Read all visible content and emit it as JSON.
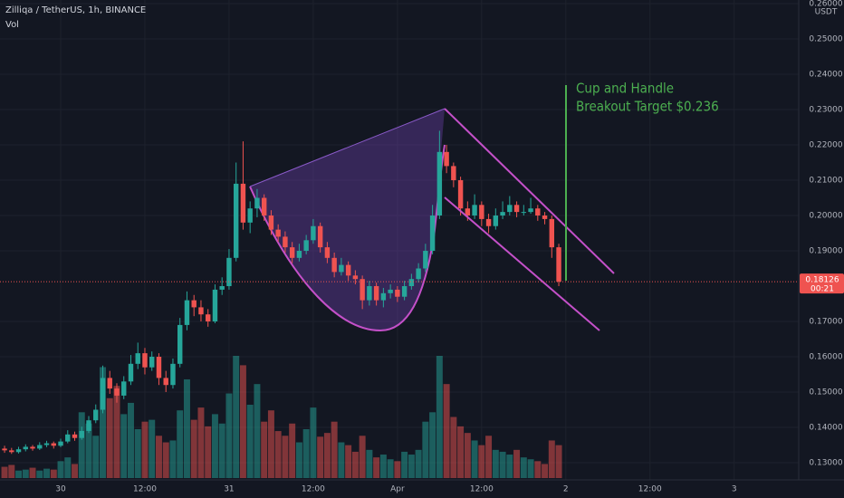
{
  "chart_data": {
    "type": "candlestick",
    "title": "Zilliqa / TetherUS, 1h, BINANCE",
    "volume_label": "Vol",
    "currency": "USDT",
    "annotation": [
      "Cup and Handle",
      "Breakout Target $0.236"
    ],
    "last_price": 0.18126,
    "countdown": "00:21",
    "colors": {
      "up": "#26a69a",
      "down": "#ef5350"
    },
    "grid": true,
    "xlim": [
      -8.65,
      105.2
    ],
    "xticks": [
      {
        "value": 0,
        "label": "30"
      },
      {
        "value": 12,
        "label": "12:00"
      },
      {
        "value": 24,
        "label": "31"
      },
      {
        "value": 36,
        "label": "12:00"
      },
      {
        "value": 48,
        "label": "Apr"
      },
      {
        "value": 60,
        "label": "12:00"
      },
      {
        "value": 72,
        "label": "2"
      },
      {
        "value": 84,
        "label": "12:00"
      },
      {
        "value": 96,
        "label": "3"
      }
    ],
    "ylim": [
      0.12513,
      0.26103
    ],
    "yticks": [
      {
        "value": 0.13,
        "label": "0.13000"
      },
      {
        "value": 0.14,
        "label": "0.14000"
      },
      {
        "value": 0.15,
        "label": "0.15000"
      },
      {
        "value": 0.16,
        "label": "0.16000"
      },
      {
        "value": 0.17,
        "label": "0.17000"
      },
      {
        "value": 0.19,
        "label": "0.19000"
      },
      {
        "value": 0.2,
        "label": "0.20000"
      },
      {
        "value": 0.21,
        "label": "0.21000"
      },
      {
        "value": 0.22,
        "label": "0.22000"
      },
      {
        "value": 0.23,
        "label": "0.23000"
      },
      {
        "value": 0.24,
        "label": "0.24000"
      },
      {
        "value": 0.25,
        "label": "0.25000"
      },
      {
        "value": 0.26,
        "label": "0.26000"
      }
    ],
    "x": [
      -8,
      -7,
      -6,
      -5,
      -4,
      -3,
      -2,
      -1,
      0,
      1,
      2,
      3,
      4,
      5,
      6,
      7,
      8,
      9,
      10,
      11,
      12,
      13,
      14,
      15,
      16,
      17,
      18,
      19,
      20,
      21,
      22,
      23,
      24,
      25,
      26,
      27,
      28,
      29,
      30,
      31,
      32,
      33,
      34,
      35,
      36,
      37,
      38,
      39,
      40,
      41,
      42,
      43,
      44,
      45,
      46,
      47,
      48,
      49,
      50,
      51,
      52,
      53,
      54,
      55,
      56,
      57,
      58,
      59,
      60,
      61,
      62,
      63,
      64,
      65,
      66,
      67,
      68,
      69,
      70,
      71
    ],
    "ohlc": [
      [
        0.134,
        0.1348,
        0.1328,
        0.1335
      ],
      [
        0.1335,
        0.1342,
        0.1325,
        0.133
      ],
      [
        0.133,
        0.1345,
        0.1326,
        0.1338
      ],
      [
        0.1338,
        0.1352,
        0.1332,
        0.1345
      ],
      [
        0.1345,
        0.135,
        0.1334,
        0.134
      ],
      [
        0.134,
        0.1358,
        0.1336,
        0.135
      ],
      [
        0.135,
        0.1362,
        0.1344,
        0.1355
      ],
      [
        0.1355,
        0.136,
        0.134,
        0.1348
      ],
      [
        0.1348,
        0.1368,
        0.1344,
        0.136
      ],
      [
        0.136,
        0.1392,
        0.1355,
        0.138
      ],
      [
        0.138,
        0.1388,
        0.1362,
        0.137
      ],
      [
        0.137,
        0.1402,
        0.1365,
        0.139
      ],
      [
        0.139,
        0.1432,
        0.1384,
        0.142
      ],
      [
        0.142,
        0.1465,
        0.1412,
        0.145
      ],
      [
        0.145,
        0.1575,
        0.144,
        0.154
      ],
      [
        0.154,
        0.156,
        0.1495,
        0.151
      ],
      [
        0.151,
        0.1525,
        0.147,
        0.149
      ],
      [
        0.149,
        0.1545,
        0.148,
        0.153
      ],
      [
        0.153,
        0.1605,
        0.152,
        0.158
      ],
      [
        0.158,
        0.164,
        0.1565,
        0.161
      ],
      [
        0.161,
        0.1625,
        0.155,
        0.157
      ],
      [
        0.157,
        0.1615,
        0.156,
        0.16
      ],
      [
        0.16,
        0.161,
        0.152,
        0.154
      ],
      [
        0.154,
        0.156,
        0.15,
        0.152
      ],
      [
        0.152,
        0.1595,
        0.151,
        0.158
      ],
      [
        0.158,
        0.171,
        0.157,
        0.169
      ],
      [
        0.169,
        0.1785,
        0.1675,
        0.176
      ],
      [
        0.176,
        0.1775,
        0.1715,
        0.174
      ],
      [
        0.174,
        0.176,
        0.17,
        0.172
      ],
      [
        0.172,
        0.1735,
        0.1685,
        0.17
      ],
      [
        0.17,
        0.1805,
        0.1695,
        0.179
      ],
      [
        0.179,
        0.1825,
        0.1775,
        0.18
      ],
      [
        0.18,
        0.1905,
        0.179,
        0.188
      ],
      [
        0.188,
        0.215,
        0.187,
        0.209
      ],
      [
        0.209,
        0.221,
        0.196,
        0.198
      ],
      [
        0.198,
        0.204,
        0.195,
        0.202
      ],
      [
        0.202,
        0.2075,
        0.1995,
        0.205
      ],
      [
        0.205,
        0.206,
        0.1985,
        0.2
      ],
      [
        0.2,
        0.2015,
        0.1945,
        0.196
      ],
      [
        0.196,
        0.1975,
        0.1925,
        0.194
      ],
      [
        0.194,
        0.1955,
        0.1895,
        0.191
      ],
      [
        0.191,
        0.1925,
        0.1865,
        0.188
      ],
      [
        0.188,
        0.192,
        0.187,
        0.19
      ],
      [
        0.19,
        0.1945,
        0.189,
        0.193
      ],
      [
        0.193,
        0.199,
        0.192,
        0.197
      ],
      [
        0.197,
        0.198,
        0.1895,
        0.191
      ],
      [
        0.191,
        0.1925,
        0.1865,
        0.188
      ],
      [
        0.188,
        0.1895,
        0.1825,
        0.184
      ],
      [
        0.184,
        0.188,
        0.183,
        0.186
      ],
      [
        0.186,
        0.187,
        0.1815,
        0.183
      ],
      [
        0.183,
        0.1845,
        0.1805,
        0.182
      ],
      [
        0.182,
        0.183,
        0.1735,
        0.176
      ],
      [
        0.176,
        0.1815,
        0.1745,
        0.18
      ],
      [
        0.18,
        0.181,
        0.1745,
        0.176
      ],
      [
        0.176,
        0.1795,
        0.174,
        0.178
      ],
      [
        0.178,
        0.1805,
        0.1765,
        0.179
      ],
      [
        0.179,
        0.18,
        0.1755,
        0.177
      ],
      [
        0.177,
        0.1815,
        0.176,
        0.18
      ],
      [
        0.18,
        0.1835,
        0.179,
        0.182
      ],
      [
        0.182,
        0.1865,
        0.181,
        0.185
      ],
      [
        0.185,
        0.192,
        0.184,
        0.19
      ],
      [
        0.19,
        0.203,
        0.189,
        0.2
      ],
      [
        0.2,
        0.224,
        0.199,
        0.218
      ],
      [
        0.218,
        0.22,
        0.212,
        0.214
      ],
      [
        0.214,
        0.215,
        0.208,
        0.21
      ],
      [
        0.21,
        0.211,
        0.2,
        0.202
      ],
      [
        0.202,
        0.204,
        0.1985,
        0.2
      ],
      [
        0.2,
        0.206,
        0.199,
        0.203
      ],
      [
        0.203,
        0.204,
        0.197,
        0.199
      ],
      [
        0.199,
        0.2005,
        0.195,
        0.197
      ],
      [
        0.197,
        0.202,
        0.196,
        0.2
      ],
      [
        0.2,
        0.204,
        0.199,
        0.201
      ],
      [
        0.201,
        0.2055,
        0.2,
        0.203
      ],
      [
        0.203,
        0.204,
        0.1995,
        0.201
      ],
      [
        0.201,
        0.203,
        0.2,
        0.201
      ],
      [
        0.201,
        0.205,
        0.2005,
        0.202
      ],
      [
        0.202,
        0.203,
        0.1985,
        0.2
      ],
      [
        0.2,
        0.201,
        0.1975,
        0.199
      ],
      [
        0.199,
        0.2,
        0.188,
        0.191
      ],
      [
        0.191,
        0.192,
        0.18,
        0.18126
      ]
    ],
    "volume": [
      12,
      14,
      8,
      9,
      11,
      8,
      10,
      9,
      18,
      22,
      15,
      70,
      58,
      45,
      118,
      85,
      98,
      68,
      80,
      52,
      60,
      62,
      45,
      38,
      40,
      72,
      105,
      62,
      75,
      55,
      68,
      58,
      90,
      130,
      120,
      78,
      100,
      60,
      72,
      50,
      45,
      58,
      38,
      52,
      75,
      44,
      48,
      60,
      38,
      35,
      28,
      45,
      30,
      22,
      25,
      20,
      18,
      28,
      25,
      30,
      60,
      70,
      130,
      100,
      65,
      55,
      48,
      40,
      35,
      45,
      30,
      28,
      25,
      30,
      22,
      20,
      18,
      15,
      40,
      35
    ]
  }
}
